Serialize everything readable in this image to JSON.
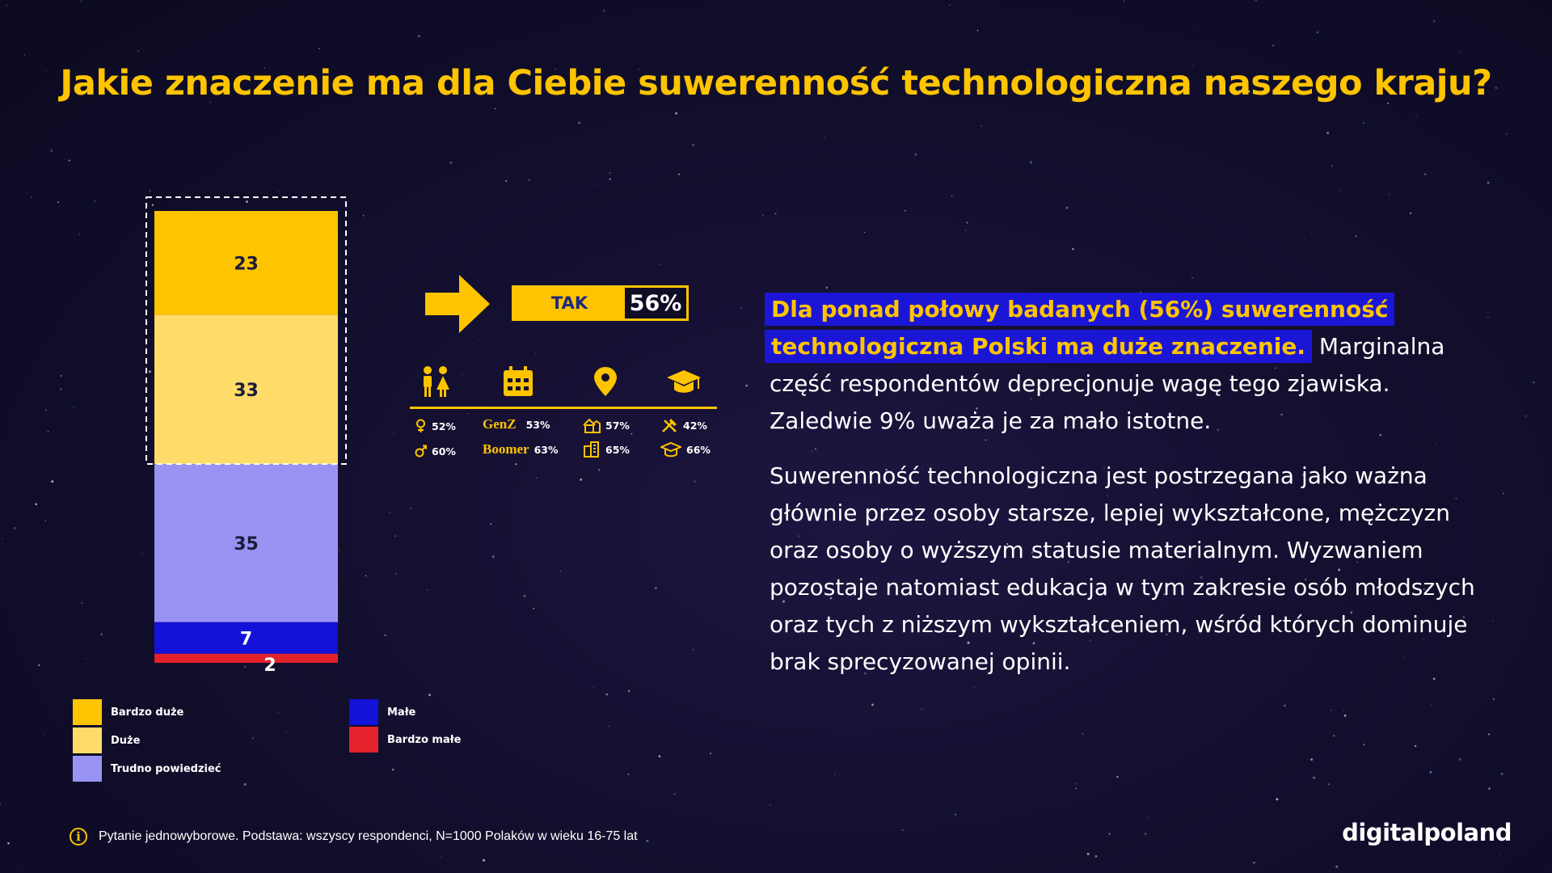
{
  "title": "Jakie znaczenie ma dla Ciebie suwerenność technologiczna naszego kraju?",
  "chart_data": {
    "type": "bar",
    "stacked": true,
    "orientation": "vertical",
    "categories": [
      ""
    ],
    "series": [
      {
        "name": "Bardzo duże",
        "values": [
          23
        ],
        "color": "#ffc400"
      },
      {
        "name": "Duże",
        "values": [
          33
        ],
        "color": "#ffdb6a"
      },
      {
        "name": "Trudno powiedzieć",
        "values": [
          35
        ],
        "color": "#9893f3"
      },
      {
        "name": "Małe",
        "values": [
          7
        ],
        "color": "#1212d9"
      },
      {
        "name": "Bardzo małe",
        "values": [
          2
        ],
        "color": "#e3222b"
      }
    ],
    "highlight_group": [
      "Bardzo duże",
      "Duże"
    ],
    "ylim": [
      0,
      100
    ],
    "legend_position": "bottom"
  },
  "summary": {
    "label": "TAK",
    "value": "56%",
    "color_label_bg": "#ffc400"
  },
  "demographics": {
    "icons": [
      "people-icon",
      "calendar-icon",
      "location-pin-icon",
      "graduation-cap-icon"
    ],
    "gender": [
      {
        "icon": "female-icon",
        "value": "52%"
      },
      {
        "icon": "male-icon",
        "value": "60%"
      }
    ],
    "generation": [
      {
        "label": "GenZ",
        "value": "53%"
      },
      {
        "label": "Boomer",
        "value": "63%"
      }
    ],
    "place": [
      {
        "icon": "village-icon",
        "value": "57%"
      },
      {
        "icon": "city-icon",
        "value": "65%"
      }
    ],
    "education": [
      {
        "icon": "tools-icon",
        "value": "42%"
      },
      {
        "icon": "grad-cap-icon",
        "value": "66%"
      }
    ]
  },
  "text": {
    "highlight": "Dla ponad połowy badanych (56%) suwerenność technologiczna Polski ma duże znaczenie.",
    "para1_rest": " Marginalna część respondentów deprecjonuje wagę tego zjawiska. Zaledwie 9% uważa je za mało istotne.",
    "para2": "Suwerenność technologiczna jest postrzegana jako ważna głównie przez osoby starsze, lepiej wykształcone, mężczyzn oraz osoby o wyższym statusie materialnym. Wyzwaniem pozostaje natomiast edukacja w tym zakresie osób młodszych oraz tych z niższym wykształceniem, wśród których dominuje brak sprecyzowanej opinii."
  },
  "footnote": "Pytanie jednowyborowe. Podstawa: wszyscy respondenci, N=1000 Polaków w wieku 16-75 lat",
  "logo": "digitalpoland",
  "colors": {
    "accent": "#ffc400",
    "highlight_bg": "#1b16d6",
    "background": "#130f2e"
  }
}
